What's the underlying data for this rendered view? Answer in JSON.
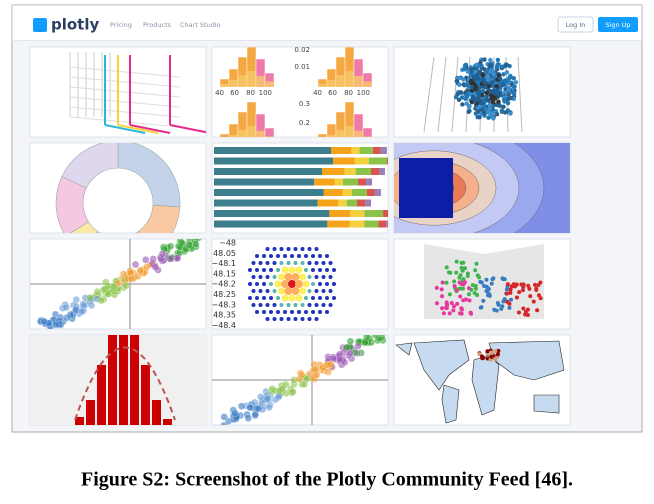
{
  "navbar": {
    "logo": "plotly",
    "links": [
      "Pricing",
      "Products",
      "Chart Studio"
    ],
    "login": "Log In",
    "signup": "Sign Up"
  },
  "thumbnails": [
    {
      "labels": [
        "0.02",
        "0.01",
        "40",
        "60",
        "80",
        "100",
        "40",
        "60",
        "80",
        "100",
        "0.3",
        "0.2"
      ]
    },
    {
      "labels": [
        "−48",
        "48.05",
        "−48.1",
        "48.15",
        "−48.2",
        "48.25",
        "−48.3",
        "48.35",
        "−48.4"
      ]
    }
  ],
  "caption": "Figure S2: Screenshot of the Plotly Community Feed [46]."
}
